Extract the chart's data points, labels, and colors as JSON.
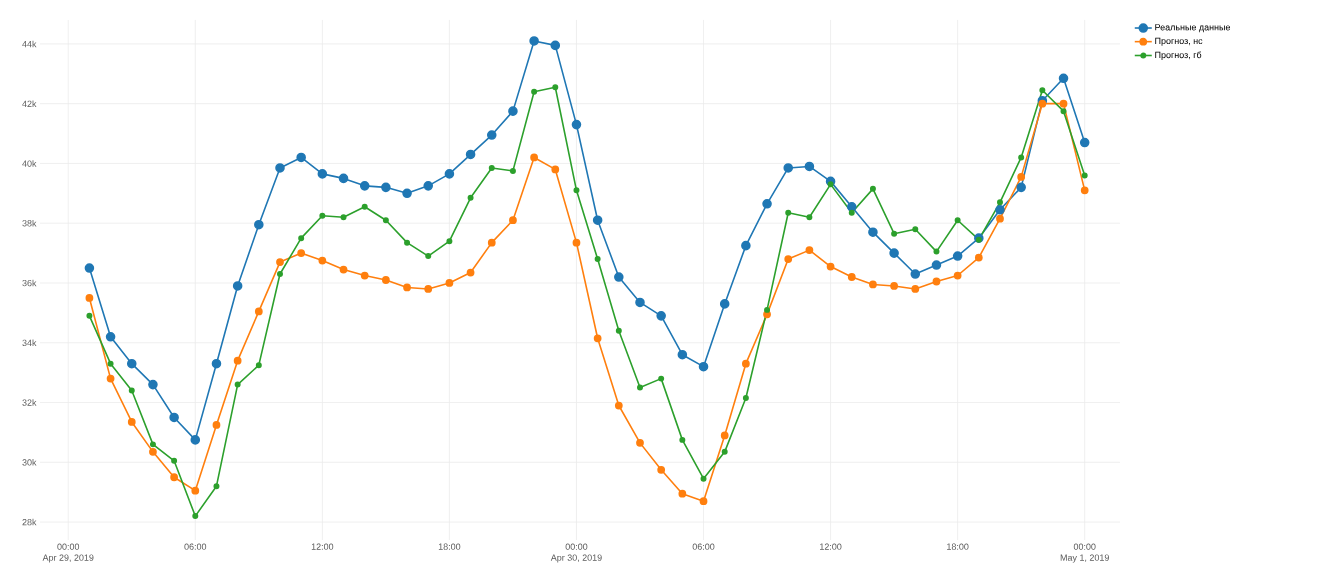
{
  "chart_data": {
    "type": "line",
    "x": [
      "2019-04-29T01:00",
      "2019-04-29T02:00",
      "2019-04-29T03:00",
      "2019-04-29T04:00",
      "2019-04-29T05:00",
      "2019-04-29T06:00",
      "2019-04-29T07:00",
      "2019-04-29T08:00",
      "2019-04-29T09:00",
      "2019-04-29T10:00",
      "2019-04-29T11:00",
      "2019-04-29T12:00",
      "2019-04-29T13:00",
      "2019-04-29T14:00",
      "2019-04-29T15:00",
      "2019-04-29T16:00",
      "2019-04-29T17:00",
      "2019-04-29T18:00",
      "2019-04-29T19:00",
      "2019-04-29T20:00",
      "2019-04-29T21:00",
      "2019-04-29T22:00",
      "2019-04-29T23:00",
      "2019-04-30T00:00",
      "2019-04-30T01:00",
      "2019-04-30T02:00",
      "2019-04-30T03:00",
      "2019-04-30T04:00",
      "2019-04-30T05:00",
      "2019-04-30T06:00",
      "2019-04-30T07:00",
      "2019-04-30T08:00",
      "2019-04-30T09:00",
      "2019-04-30T10:00",
      "2019-04-30T11:00",
      "2019-04-30T12:00",
      "2019-04-30T13:00",
      "2019-04-30T14:00",
      "2019-04-30T15:00",
      "2019-04-30T16:00",
      "2019-04-30T17:00",
      "2019-04-30T18:00",
      "2019-04-30T19:00",
      "2019-04-30T20:00",
      "2019-04-30T21:00",
      "2019-04-30T22:00",
      "2019-04-30T23:00",
      "2019-05-01T00:00"
    ],
    "series": [
      {
        "name": "Реальные данные",
        "color": "#1f77b4",
        "values": [
          36500,
          34200,
          33300,
          32600,
          31500,
          30750,
          33300,
          35900,
          37950,
          39850,
          40200,
          39650,
          39500,
          39250,
          39200,
          39000,
          39250,
          39650,
          40300,
          40950,
          41750,
          44100,
          43950,
          41300,
          38100,
          36200,
          35350,
          34900,
          33600,
          33200,
          35300,
          37250,
          38650,
          39850,
          39900,
          39400,
          38550,
          37700,
          37000,
          36300,
          36600,
          36900,
          37500,
          38450,
          39200,
          42100,
          42850,
          40700
        ]
      },
      {
        "name": "Прогноз, нс",
        "color": "#ff7f0e",
        "values": [
          35500,
          32800,
          31350,
          30350,
          29500,
          29050,
          31250,
          33400,
          35050,
          36700,
          37000,
          36750,
          36450,
          36250,
          36100,
          35850,
          35800,
          36000,
          36350,
          37350,
          38100,
          40200,
          39800,
          37350,
          34150,
          31900,
          30650,
          29750,
          28950,
          28700,
          30900,
          33300,
          34950,
          36800,
          37100,
          36550,
          36200,
          35950,
          35900,
          35800,
          36050,
          36250,
          36850,
          38150,
          39550,
          42000,
          42000,
          39100
        ]
      },
      {
        "name": "Прогноз, гб",
        "color": "#2ca02c",
        "values": [
          34900,
          33300,
          32400,
          30600,
          30050,
          28200,
          29200,
          32600,
          33250,
          36300,
          37500,
          38250,
          38200,
          38550,
          38100,
          37350,
          36900,
          37400,
          38850,
          39850,
          39750,
          42400,
          42550,
          39100,
          36800,
          34400,
          32500,
          32800,
          30750,
          29450,
          30350,
          32150,
          35100,
          38350,
          38200,
          39300,
          38350,
          39150,
          37650,
          37800,
          37050,
          38100,
          37450,
          38700,
          40200,
          42450,
          41750,
          39600
        ]
      }
    ],
    "xlim": [
      "2019-04-28T22:40",
      "2019-05-01T01:40"
    ],
    "xticks": [
      {
        "value": "2019-04-29T00:00",
        "label": "00:00\nApr 29, 2019"
      },
      {
        "value": "2019-04-29T06:00",
        "label": "06:00"
      },
      {
        "value": "2019-04-29T12:00",
        "label": "12:00"
      },
      {
        "value": "2019-04-29T18:00",
        "label": "18:00"
      },
      {
        "value": "2019-04-30T00:00",
        "label": "00:00\nApr 30, 2019"
      },
      {
        "value": "2019-04-30T06:00",
        "label": "06:00"
      },
      {
        "value": "2019-04-30T12:00",
        "label": "12:00"
      },
      {
        "value": "2019-04-30T18:00",
        "label": "18:00"
      },
      {
        "value": "2019-05-01T00:00",
        "label": "00:00\nMay 1, 2019"
      }
    ],
    "ylim": [
      27400,
      44800
    ],
    "yticks": [
      {
        "value": 28000,
        "label": "28k"
      },
      {
        "value": 30000,
        "label": "30k"
      },
      {
        "value": 32000,
        "label": "32k"
      },
      {
        "value": 34000,
        "label": "34k"
      },
      {
        "value": 36000,
        "label": "36k"
      },
      {
        "value": 38000,
        "label": "38k"
      },
      {
        "value": 40000,
        "label": "40k"
      },
      {
        "value": 42000,
        "label": "42k"
      },
      {
        "value": 44000,
        "label": "44k"
      }
    ],
    "grid": true,
    "legend": "top right",
    "marker": "circle",
    "line_style": "solid"
  }
}
